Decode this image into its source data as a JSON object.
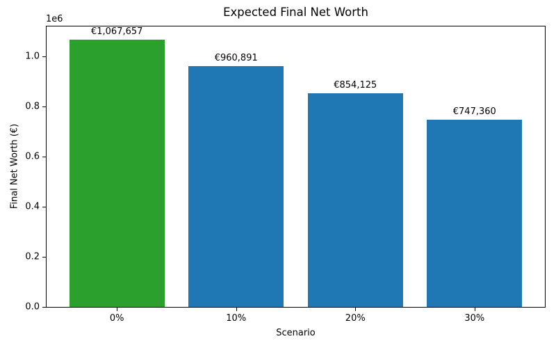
{
  "chart_data": {
    "type": "bar",
    "title": "Expected Final Net Worth",
    "xlabel": "Scenario",
    "ylabel": "Final Net Worth (€)",
    "offset_text": "1e6",
    "categories": [
      "0%",
      "10%",
      "20%",
      "30%"
    ],
    "values": [
      1067657,
      960891,
      854125,
      747360
    ],
    "bar_labels": [
      "€1,067,657",
      "€960,891",
      "€854,125",
      "€747,360"
    ],
    "bar_colors": [
      "#2ca02c",
      "#1f77b4",
      "#1f77b4",
      "#1f77b4"
    ],
    "ylim": [
      0,
      1120000
    ],
    "yticks": [
      0,
      200000,
      400000,
      600000,
      800000,
      1000000
    ],
    "ytick_labels": [
      "0.0",
      "0.2",
      "0.4",
      "0.6",
      "0.8",
      "1.0"
    ],
    "xlim": [
      -0.59,
      3.59
    ],
    "bar_width_units": 0.8,
    "grid": false,
    "legend": false
  }
}
